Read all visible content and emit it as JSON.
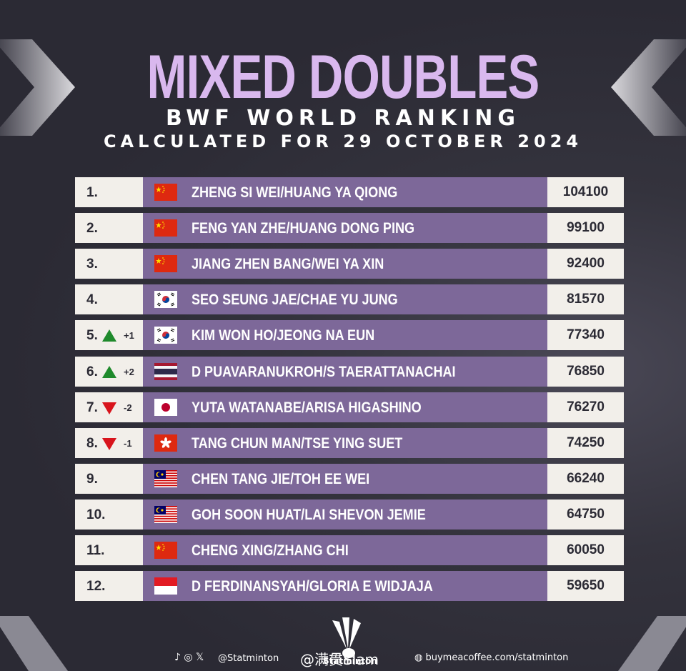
{
  "header": {
    "title": "MIXED DOUBLES",
    "subtitle": "BWF WORLD RANKING",
    "date_line": "CALCULATED FOR 29 OCTOBER 2024"
  },
  "rankings": [
    {
      "rank": "1.",
      "delta": "",
      "trend": "none",
      "flag": "china-flag",
      "pair": "ZHENG SI WEI/HUANG YA QIONG",
      "points": "104100"
    },
    {
      "rank": "2.",
      "delta": "",
      "trend": "none",
      "flag": "china-flag",
      "pair": "FENG YAN ZHE/HUANG DONG PING",
      "points": "99100"
    },
    {
      "rank": "3.",
      "delta": "",
      "trend": "none",
      "flag": "china-flag",
      "pair": "JIANG ZHEN BANG/WEI YA XIN",
      "points": "92400"
    },
    {
      "rank": "4.",
      "delta": "",
      "trend": "none",
      "flag": "korea-flag",
      "pair": "SEO SEUNG JAE/CHAE YU JUNG",
      "points": "81570"
    },
    {
      "rank": "5.",
      "delta": "+1",
      "trend": "up",
      "flag": "korea-flag",
      "pair": "KIM WON HO/JEONG NA EUN",
      "points": "77340"
    },
    {
      "rank": "6.",
      "delta": "+2",
      "trend": "up",
      "flag": "thailand-flag",
      "pair": "D PUAVARANUKROH/S TAERATTANACHAI",
      "points": "76850"
    },
    {
      "rank": "7.",
      "delta": "-2",
      "trend": "down",
      "flag": "japan-flag",
      "pair": "YUTA WATANABE/ARISA HIGASHINO",
      "points": "76270"
    },
    {
      "rank": "8.",
      "delta": "-1",
      "trend": "down",
      "flag": "hong-kong-flag",
      "pair": "TANG CHUN MAN/TSE YING SUET",
      "points": "74250"
    },
    {
      "rank": "9.",
      "delta": "",
      "trend": "none",
      "flag": "malaysia-flag",
      "pair": "CHEN TANG JIE/TOH EE WEI",
      "points": "66240"
    },
    {
      "rank": "10.",
      "delta": "",
      "trend": "none",
      "flag": "malaysia-flag",
      "pair": "GOH SOON HUAT/LAI SHEVON JEMIE",
      "points": "64750"
    },
    {
      "rank": "11.",
      "delta": "",
      "trend": "none",
      "flag": "china-flag",
      "pair": "CHENG XING/ZHANG CHI",
      "points": "60050"
    },
    {
      "rank": "12.",
      "delta": "",
      "trend": "none",
      "flag": "indonesia-flag",
      "pair": "D FERDINANSYAH/GLORIA E WIDJAJA",
      "points": "59650"
    }
  ],
  "footer": {
    "social_handle": "@Statminton",
    "weibo_watermark": "@满贯Slam",
    "logo_text": "Statminton",
    "coffee_link": "buymeacoffee.com/statminton"
  },
  "colors": {
    "title": "#d9b8ee",
    "row_mid": "#7d6899",
    "row_side": "#f2efea",
    "up": "#1f8a2c",
    "down": "#d8141c"
  }
}
